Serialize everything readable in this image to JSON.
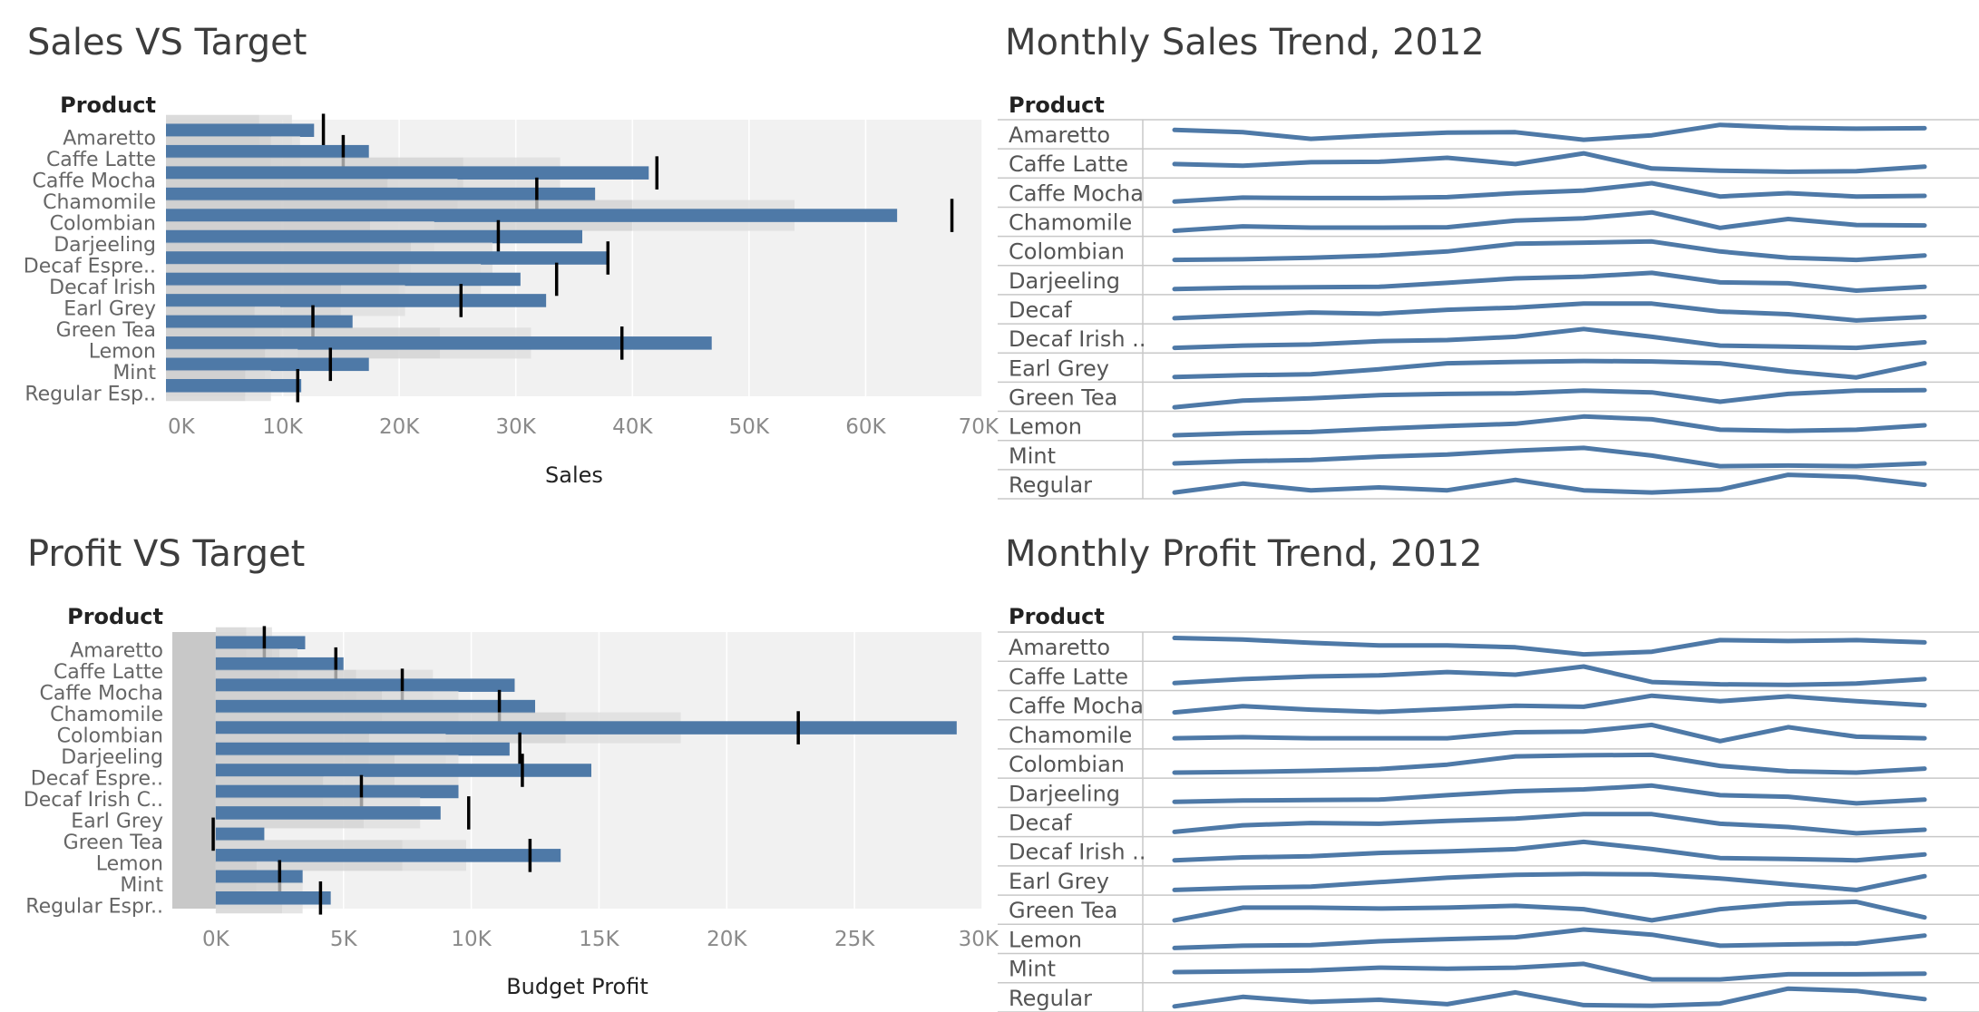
{
  "dashboard": {
    "accent_color": "#4e79a7",
    "reference_line_color": "#000000"
  },
  "chart_data": [
    {
      "id": "sales-vs-target",
      "type": "bar",
      "title": "Sales VS Target",
      "row_header": "Product",
      "xlabel": "Sales",
      "xlim": [
        0,
        70000
      ],
      "tick_labels": [
        "0K",
        "10K",
        "20K",
        "30K",
        "40K",
        "50K",
        "60K",
        "70K"
      ],
      "categories": [
        "Amaretto",
        "Caffe Latte",
        "Caffe Mocha",
        "Chamomile",
        "Colombian",
        "Darjeeling",
        "Decaf Espre..",
        "Decaf Irish",
        "Earl Grey",
        "Green Tea",
        "Lemon",
        "Mint",
        "Regular Esp.."
      ],
      "series": [
        {
          "name": "Sales",
          "values": [
            12700,
            17400,
            41400,
            36800,
            62700,
            35700,
            37900,
            30400,
            32600,
            16000,
            46800,
            17400,
            11600
          ]
        },
        {
          "name": "Target",
          "values": [
            13500,
            15200,
            42100,
            31800,
            67400,
            28500,
            37900,
            33500,
            25300,
            12600,
            39100,
            14100,
            11300
          ]
        }
      ],
      "bands": [
        [
          8000,
          10800
        ],
        [
          9000,
          11500
        ],
        [
          25500,
          33800
        ],
        [
          19000,
          25000
        ],
        [
          40000,
          53900
        ],
        [
          17500,
          23000
        ],
        [
          21000,
          28000
        ],
        [
          20000,
          27000
        ],
        [
          15000,
          20500
        ],
        [
          7600,
          9800
        ],
        [
          23500,
          31300
        ],
        [
          8500,
          11300
        ],
        [
          6800,
          9000
        ]
      ],
      "band_ranges": "fraction of target"
    },
    {
      "id": "profit-vs-target",
      "type": "bar",
      "title": "Profit VS Target",
      "row_header": "Product",
      "xlabel": "Budget Profit",
      "xlim": [
        -1700,
        30000
      ],
      "tick_labels": [
        "0K",
        "5K",
        "10K",
        "15K",
        "20K",
        "25K",
        "30K"
      ],
      "tick_values": [
        0,
        5000,
        10000,
        15000,
        20000,
        25000,
        30000
      ],
      "categories": [
        "Amaretto",
        "Caffe Latte",
        "Caffe Mocha",
        "Chamomile",
        "Colombian",
        "Darjeeling",
        "Decaf Espre..",
        "Decaf Irish C..",
        "Earl Grey",
        "Green Tea",
        "Lemon",
        "Mint",
        "Regular Espr.."
      ],
      "series": [
        {
          "name": "Budget Profit",
          "values": [
            3500,
            5000,
            11700,
            12500,
            29000,
            11500,
            14700,
            9500,
            8800,
            1900,
            13500,
            3400,
            4500
          ]
        },
        {
          "name": "Target",
          "values": [
            1900,
            4700,
            7300,
            11100,
            22800,
            11900,
            12000,
            5700,
            9900,
            -100,
            12300,
            2500,
            4100
          ]
        }
      ],
      "bands": [
        [
          1200,
          2200
        ],
        [
          2500,
          3200
        ],
        [
          5500,
          8500
        ],
        [
          6500,
          9500
        ],
        [
          13700,
          18200
        ],
        [
          6000,
          9000
        ],
        [
          7000,
          9500
        ],
        [
          4200,
          5800
        ],
        [
          5800,
          8000
        ],
        [
          -1700,
          -1700
        ],
        [
          7300,
          9800
        ],
        [
          1600,
          2400
        ],
        [
          2600,
          3400
        ]
      ]
    },
    {
      "id": "monthly-sales-trend",
      "type": "line",
      "title": "Monthly Sales Trend, 2012",
      "row_header": "Product",
      "x": [
        1,
        2,
        3,
        4,
        5,
        6,
        7,
        8,
        9,
        10,
        11,
        12
      ],
      "series": [
        {
          "name": "Amaretto",
          "values": [
            0.72,
            0.62,
            0.32,
            0.48,
            0.6,
            0.62,
            0.28,
            0.48,
            0.95,
            0.82,
            0.78,
            0.8
          ]
        },
        {
          "name": "Caffe Latte",
          "values": [
            0.5,
            0.42,
            0.58,
            0.6,
            0.78,
            0.5,
            0.98,
            0.3,
            0.2,
            0.15,
            0.18,
            0.38
          ]
        },
        {
          "name": "Caffe Mocha",
          "values": [
            0.12,
            0.3,
            0.28,
            0.28,
            0.32,
            0.5,
            0.62,
            0.95,
            0.35,
            0.5,
            0.35,
            0.38
          ]
        },
        {
          "name": "Chamomile",
          "values": [
            0.12,
            0.32,
            0.26,
            0.26,
            0.28,
            0.58,
            0.68,
            0.95,
            0.25,
            0.65,
            0.38,
            0.36
          ]
        },
        {
          "name": "Colombian",
          "values": [
            0.12,
            0.15,
            0.22,
            0.32,
            0.5,
            0.85,
            0.9,
            0.95,
            0.5,
            0.22,
            0.12,
            0.32
          ]
        },
        {
          "name": "Darjeeling",
          "values": [
            0.12,
            0.18,
            0.2,
            0.22,
            0.4,
            0.6,
            0.68,
            0.85,
            0.42,
            0.38,
            0.05,
            0.22
          ]
        },
        {
          "name": "Decaf",
          "values": [
            0.12,
            0.25,
            0.38,
            0.32,
            0.5,
            0.6,
            0.78,
            0.78,
            0.42,
            0.3,
            0.02,
            0.18
          ]
        },
        {
          "name": "Decaf Irish ..",
          "values": [
            0.1,
            0.2,
            0.25,
            0.4,
            0.45,
            0.6,
            0.95,
            0.6,
            0.2,
            0.15,
            0.1,
            0.35
          ]
        },
        {
          "name": "Earl Grey",
          "values": [
            0.1,
            0.18,
            0.22,
            0.45,
            0.72,
            0.78,
            0.82,
            0.8,
            0.72,
            0.35,
            0.08,
            0.72
          ]
        },
        {
          "name": "Green Tea",
          "values": [
            0.05,
            0.35,
            0.45,
            0.6,
            0.65,
            0.68,
            0.8,
            0.72,
            0.3,
            0.65,
            0.8,
            0.82
          ]
        },
        {
          "name": "Lemon",
          "values": [
            0.1,
            0.2,
            0.25,
            0.4,
            0.52,
            0.62,
            0.95,
            0.82,
            0.35,
            0.3,
            0.35,
            0.55
          ]
        },
        {
          "name": "Mint",
          "values": [
            0.15,
            0.25,
            0.3,
            0.45,
            0.55,
            0.72,
            0.85,
            0.5,
            0.02,
            0.05,
            0.02,
            0.15
          ]
        },
        {
          "name": "Regular",
          "values": [
            0.15,
            0.55,
            0.25,
            0.38,
            0.25,
            0.72,
            0.25,
            0.15,
            0.28,
            0.95,
            0.85,
            0.5
          ]
        }
      ]
    },
    {
      "id": "monthly-profit-trend",
      "type": "line",
      "title": "Monthly Profit Trend, 2012",
      "row_header": "Product",
      "x": [
        1,
        2,
        3,
        4,
        5,
        6,
        7,
        8,
        9,
        10,
        11,
        12
      ],
      "series": [
        {
          "name": "Amaretto",
          "values": [
            0.92,
            0.85,
            0.7,
            0.58,
            0.58,
            0.5,
            0.18,
            0.3,
            0.82,
            0.78,
            0.82,
            0.72
          ]
        },
        {
          "name": "Caffe Latte",
          "values": [
            0.2,
            0.38,
            0.5,
            0.55,
            0.7,
            0.58,
            0.95,
            0.25,
            0.15,
            0.12,
            0.18,
            0.38
          ]
        },
        {
          "name": "Caffe Mocha",
          "values": [
            0.2,
            0.48,
            0.32,
            0.22,
            0.35,
            0.5,
            0.45,
            0.95,
            0.7,
            0.92,
            0.7,
            0.52
          ]
        },
        {
          "name": "Chamomile",
          "values": [
            0.35,
            0.4,
            0.35,
            0.35,
            0.35,
            0.62,
            0.65,
            0.95,
            0.22,
            0.85,
            0.42,
            0.35
          ]
        },
        {
          "name": "Colombian",
          "values": [
            0.12,
            0.15,
            0.2,
            0.28,
            0.48,
            0.85,
            0.9,
            0.92,
            0.42,
            0.18,
            0.12,
            0.3
          ]
        },
        {
          "name": "Darjeeling",
          "values": [
            0.12,
            0.18,
            0.2,
            0.22,
            0.42,
            0.6,
            0.68,
            0.85,
            0.42,
            0.35,
            0.05,
            0.22
          ]
        },
        {
          "name": "Decaf",
          "values": [
            0.08,
            0.38,
            0.48,
            0.45,
            0.58,
            0.68,
            0.88,
            0.88,
            0.45,
            0.3,
            0.02,
            0.18
          ]
        },
        {
          "name": "Decaf Irish ..",
          "values": [
            0.12,
            0.25,
            0.3,
            0.45,
            0.52,
            0.62,
            0.95,
            0.62,
            0.22,
            0.18,
            0.12,
            0.38
          ]
        },
        {
          "name": "Earl Grey",
          "values": [
            0.1,
            0.2,
            0.25,
            0.45,
            0.65,
            0.78,
            0.82,
            0.8,
            0.62,
            0.35,
            0.1,
            0.72
          ]
        },
        {
          "name": "Green Tea",
          "values": [
            0.05,
            0.62,
            0.62,
            0.58,
            0.62,
            0.7,
            0.55,
            0.05,
            0.55,
            0.8,
            0.88,
            0.18
          ]
        },
        {
          "name": "Lemon",
          "values": [
            0.12,
            0.22,
            0.25,
            0.42,
            0.52,
            0.6,
            0.95,
            0.72,
            0.22,
            0.28,
            0.32,
            0.68
          ]
        },
        {
          "name": "Mint",
          "values": [
            0.35,
            0.38,
            0.42,
            0.55,
            0.5,
            0.55,
            0.72,
            0.02,
            0.02,
            0.25,
            0.25,
            0.28
          ]
        },
        {
          "name": "Regular",
          "values": [
            0.12,
            0.55,
            0.32,
            0.42,
            0.22,
            0.75,
            0.18,
            0.15,
            0.25,
            0.92,
            0.82,
            0.45
          ]
        }
      ]
    }
  ]
}
